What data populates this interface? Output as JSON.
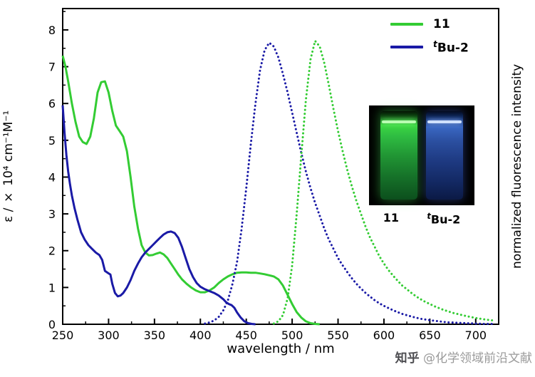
{
  "watermark": {
    "brand": "知乎",
    "handle": "@化学领域前沿文献"
  },
  "legend": {
    "items": [
      {
        "label": "11",
        "color": "#33cc33"
      },
      {
        "sup": "t",
        "label": "Bu-2",
        "color": "#1a1aa6"
      }
    ]
  },
  "inset": {
    "labels": [
      {
        "text": "11"
      },
      {
        "sup": "t",
        "text": "Bu-2"
      }
    ]
  },
  "chart_data": {
    "type": "line",
    "title": "",
    "xlabel": "wavelength / nm",
    "ylabel_left": "ε / × 10⁴ cm⁻¹M⁻¹",
    "ylabel_right": "normalized fluorescence intensity",
    "x_axis": {
      "min": 250,
      "max": 725,
      "ticks": [
        250,
        300,
        350,
        400,
        450,
        500,
        550,
        600,
        650,
        700
      ],
      "minor_step": 25
    },
    "y_axis": {
      "min": 0,
      "max": 8.58,
      "ticks": [
        0,
        1,
        2,
        3,
        4,
        5,
        6,
        7,
        8
      ],
      "minor_step": 0.5
    },
    "legend_position": "top-right",
    "grid": false,
    "right_axis_note": "unlabeled, normalized fluorescence intensity; dotted emission peaks = 1.0 normalized",
    "series": [
      {
        "id": "abs-11",
        "name": "11 absorption",
        "color": "#33cc33",
        "style": "solid",
        "axis": "left",
        "points": [
          [
            250,
            7.3
          ],
          [
            253,
            7.0
          ],
          [
            256,
            6.6
          ],
          [
            260,
            6.0
          ],
          [
            264,
            5.5
          ],
          [
            268,
            5.1
          ],
          [
            272,
            4.95
          ],
          [
            276,
            4.9
          ],
          [
            280,
            5.1
          ],
          [
            284,
            5.6
          ],
          [
            288,
            6.3
          ],
          [
            292,
            6.58
          ],
          [
            296,
            6.6
          ],
          [
            300,
            6.3
          ],
          [
            304,
            5.8
          ],
          [
            308,
            5.4
          ],
          [
            312,
            5.25
          ],
          [
            316,
            5.1
          ],
          [
            320,
            4.7
          ],
          [
            324,
            4.0
          ],
          [
            328,
            3.2
          ],
          [
            332,
            2.6
          ],
          [
            336,
            2.15
          ],
          [
            340,
            1.95
          ],
          [
            344,
            1.87
          ],
          [
            348,
            1.88
          ],
          [
            352,
            1.92
          ],
          [
            356,
            1.95
          ],
          [
            360,
            1.9
          ],
          [
            364,
            1.8
          ],
          [
            368,
            1.65
          ],
          [
            372,
            1.5
          ],
          [
            376,
            1.35
          ],
          [
            380,
            1.22
          ],
          [
            385,
            1.1
          ],
          [
            390,
            1.0
          ],
          [
            395,
            0.92
          ],
          [
            400,
            0.87
          ],
          [
            405,
            0.87
          ],
          [
            410,
            0.92
          ],
          [
            415,
            1.0
          ],
          [
            420,
            1.12
          ],
          [
            425,
            1.22
          ],
          [
            430,
            1.3
          ],
          [
            435,
            1.36
          ],
          [
            440,
            1.4
          ],
          [
            445,
            1.41
          ],
          [
            450,
            1.41
          ],
          [
            455,
            1.4
          ],
          [
            460,
            1.4
          ],
          [
            465,
            1.38
          ],
          [
            470,
            1.36
          ],
          [
            475,
            1.33
          ],
          [
            480,
            1.3
          ],
          [
            485,
            1.22
          ],
          [
            490,
            1.05
          ],
          [
            495,
            0.8
          ],
          [
            500,
            0.55
          ],
          [
            505,
            0.33
          ],
          [
            510,
            0.18
          ],
          [
            515,
            0.08
          ],
          [
            520,
            0.03
          ],
          [
            525,
            0.01
          ],
          [
            530,
            0
          ]
        ]
      },
      {
        "id": "abs-tbu2",
        "name": "tBu-2 absorption",
        "color": "#1a1aa6",
        "style": "solid",
        "axis": "left",
        "points": [
          [
            250,
            5.95
          ],
          [
            252,
            5.2
          ],
          [
            254,
            4.6
          ],
          [
            256,
            4.15
          ],
          [
            258,
            3.8
          ],
          [
            260,
            3.5
          ],
          [
            263,
            3.15
          ],
          [
            266,
            2.85
          ],
          [
            270,
            2.5
          ],
          [
            274,
            2.3
          ],
          [
            278,
            2.15
          ],
          [
            282,
            2.05
          ],
          [
            286,
            1.95
          ],
          [
            290,
            1.88
          ],
          [
            293,
            1.75
          ],
          [
            296,
            1.45
          ],
          [
            299,
            1.4
          ],
          [
            302,
            1.35
          ],
          [
            304,
            1.1
          ],
          [
            307,
            0.85
          ],
          [
            310,
            0.76
          ],
          [
            313,
            0.78
          ],
          [
            316,
            0.85
          ],
          [
            320,
            1.0
          ],
          [
            324,
            1.2
          ],
          [
            328,
            1.45
          ],
          [
            332,
            1.65
          ],
          [
            336,
            1.82
          ],
          [
            340,
            1.95
          ],
          [
            344,
            2.05
          ],
          [
            348,
            2.15
          ],
          [
            352,
            2.25
          ],
          [
            356,
            2.35
          ],
          [
            360,
            2.44
          ],
          [
            364,
            2.5
          ],
          [
            368,
            2.52
          ],
          [
            372,
            2.48
          ],
          [
            376,
            2.35
          ],
          [
            380,
            2.1
          ],
          [
            384,
            1.8
          ],
          [
            388,
            1.5
          ],
          [
            392,
            1.28
          ],
          [
            396,
            1.12
          ],
          [
            400,
            1.02
          ],
          [
            405,
            0.95
          ],
          [
            410,
            0.9
          ],
          [
            415,
            0.85
          ],
          [
            420,
            0.78
          ],
          [
            425,
            0.68
          ],
          [
            428,
            0.6
          ],
          [
            431,
            0.55
          ],
          [
            434,
            0.52
          ],
          [
            437,
            0.45
          ],
          [
            440,
            0.32
          ],
          [
            444,
            0.18
          ],
          [
            448,
            0.08
          ],
          [
            452,
            0.03
          ],
          [
            456,
            0.01
          ],
          [
            460,
            0
          ]
        ]
      },
      {
        "id": "em-tbu2",
        "name": "tBu-2 emission (normalized)",
        "color": "#1a1aa6",
        "style": "dotted",
        "axis": "right",
        "points": [
          [
            405,
            0.02
          ],
          [
            410,
            0.05
          ],
          [
            415,
            0.1
          ],
          [
            420,
            0.2
          ],
          [
            425,
            0.38
          ],
          [
            430,
            0.65
          ],
          [
            435,
            1.1
          ],
          [
            440,
            1.7
          ],
          [
            445,
            2.6
          ],
          [
            450,
            3.7
          ],
          [
            455,
            4.9
          ],
          [
            460,
            6.0
          ],
          [
            465,
            6.9
          ],
          [
            470,
            7.45
          ],
          [
            475,
            7.65
          ],
          [
            480,
            7.55
          ],
          [
            485,
            7.25
          ],
          [
            490,
            6.8
          ],
          [
            495,
            6.3
          ],
          [
            500,
            5.75
          ],
          [
            505,
            5.2
          ],
          [
            510,
            4.65
          ],
          [
            515,
            4.15
          ],
          [
            520,
            3.7
          ],
          [
            525,
            3.3
          ],
          [
            530,
            2.95
          ],
          [
            535,
            2.6
          ],
          [
            540,
            2.3
          ],
          [
            545,
            2.05
          ],
          [
            550,
            1.8
          ],
          [
            555,
            1.6
          ],
          [
            560,
            1.42
          ],
          [
            565,
            1.25
          ],
          [
            570,
            1.1
          ],
          [
            575,
            0.97
          ],
          [
            580,
            0.85
          ],
          [
            585,
            0.75
          ],
          [
            590,
            0.65
          ],
          [
            595,
            0.57
          ],
          [
            600,
            0.5
          ],
          [
            610,
            0.38
          ],
          [
            620,
            0.28
          ],
          [
            630,
            0.21
          ],
          [
            640,
            0.15
          ],
          [
            650,
            0.11
          ],
          [
            660,
            0.08
          ],
          [
            670,
            0.05
          ],
          [
            680,
            0.04
          ],
          [
            690,
            0.03
          ],
          [
            700,
            0.02
          ],
          [
            710,
            0.01
          ],
          [
            720,
            0.01
          ]
        ]
      },
      {
        "id": "em-11",
        "name": "11 emission (normalized)",
        "color": "#33cc33",
        "style": "dotted",
        "axis": "right",
        "points": [
          [
            480,
            0.02
          ],
          [
            485,
            0.08
          ],
          [
            490,
            0.25
          ],
          [
            495,
            0.7
          ],
          [
            500,
            1.6
          ],
          [
            505,
            3.0
          ],
          [
            510,
            4.6
          ],
          [
            515,
            6.1
          ],
          [
            520,
            7.2
          ],
          [
            525,
            7.7
          ],
          [
            530,
            7.55
          ],
          [
            535,
            7.1
          ],
          [
            540,
            6.5
          ],
          [
            545,
            5.85
          ],
          [
            550,
            5.25
          ],
          [
            555,
            4.7
          ],
          [
            560,
            4.2
          ],
          [
            565,
            3.75
          ],
          [
            570,
            3.35
          ],
          [
            575,
            3.0
          ],
          [
            580,
            2.65
          ],
          [
            585,
            2.35
          ],
          [
            590,
            2.1
          ],
          [
            595,
            1.85
          ],
          [
            600,
            1.65
          ],
          [
            605,
            1.47
          ],
          [
            610,
            1.32
          ],
          [
            615,
            1.18
          ],
          [
            620,
            1.05
          ],
          [
            625,
            0.95
          ],
          [
            630,
            0.85
          ],
          [
            635,
            0.76
          ],
          [
            640,
            0.68
          ],
          [
            645,
            0.61
          ],
          [
            650,
            0.55
          ],
          [
            655,
            0.49
          ],
          [
            660,
            0.44
          ],
          [
            665,
            0.39
          ],
          [
            670,
            0.35
          ],
          [
            675,
            0.31
          ],
          [
            680,
            0.28
          ],
          [
            690,
            0.22
          ],
          [
            700,
            0.17
          ],
          [
            710,
            0.13
          ],
          [
            720,
            0.1
          ]
        ]
      }
    ]
  }
}
